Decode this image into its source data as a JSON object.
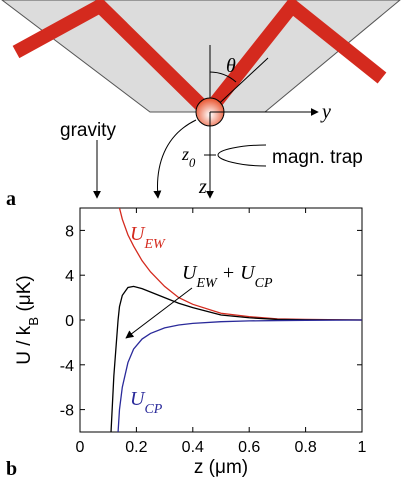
{
  "diagram": {
    "theta": "θ",
    "y_axis": "y",
    "z_axis": "z",
    "z0": [
      {
        "t": "z"
      },
      {
        "sub": "0"
      }
    ],
    "trap": "magn. trap",
    "gravity": "gravity",
    "panel": "a"
  },
  "chart_data": {
    "type": "line",
    "panel": "b",
    "x_label": "z (μm)",
    "y_label": [
      {
        "t": "U / k"
      },
      {
        "sub": "B"
      },
      {
        "t": " (μK)"
      }
    ],
    "x": [
      0.11,
      0.12,
      0.135,
      0.14,
      0.15,
      0.17,
      0.19,
      0.22,
      0.25,
      0.3,
      0.35,
      0.4,
      0.5,
      0.6,
      0.7,
      0.8,
      1.0
    ],
    "series": [
      {
        "name": [
          {
            "t": "U"
          },
          {
            "sub": "EW"
          }
        ],
        "color": "#d42a1e",
        "values": [
          null,
          null,
          null,
          10,
          9,
          7.6,
          6.6,
          5.3,
          4.3,
          3.0,
          2.0,
          1.4,
          0.6,
          0.3,
          0.1,
          0.05,
          0
        ]
      },
      {
        "name": [
          {
            "t": "U"
          },
          {
            "sub": "EW"
          },
          {
            "t": " + U"
          },
          {
            "sub": "CP"
          }
        ],
        "color": "#000000",
        "values": [
          -10,
          -5,
          0,
          1.2,
          2.2,
          2.9,
          3.0,
          2.8,
          2.5,
          2.0,
          1.5,
          1.1,
          0.45,
          0.2,
          0.05,
          0.02,
          0
        ]
      },
      {
        "name": [
          {
            "t": "U"
          },
          {
            "sub": "CP"
          }
        ],
        "color": "#2a2a9a",
        "values": [
          null,
          null,
          -10,
          -8,
          -6,
          -3.8,
          -2.6,
          -1.7,
          -1.2,
          -0.7,
          -0.45,
          -0.3,
          -0.15,
          -0.08,
          -0.05,
          -0.03,
          0
        ]
      }
    ],
    "xlim": [
      0,
      1
    ],
    "xticks": [
      0,
      0.2,
      0.4,
      0.6,
      0.8,
      1
    ],
    "ylim": [
      -10,
      10
    ],
    "yticks": [
      8,
      4,
      0,
      -4,
      -8
    ]
  }
}
